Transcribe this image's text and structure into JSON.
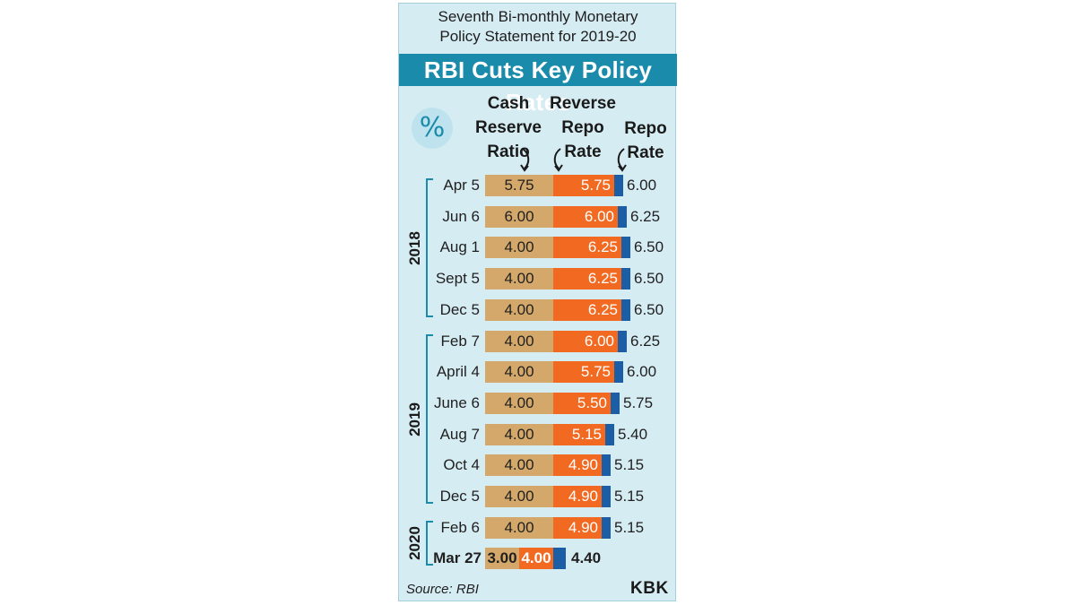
{
  "header": {
    "subtitle_line1": "Seventh Bi-monthly Monetary",
    "subtitle_line2": "Policy Statement for 2019-20",
    "title": "RBI Cuts Key Policy Rates",
    "unit_symbol": "%"
  },
  "columns": {
    "crr": [
      "Cash",
      "Reserve",
      "Ratio"
    ],
    "reverse_repo": [
      "Reverse",
      "Repo",
      "Rate"
    ],
    "repo": [
      "Repo",
      "Rate"
    ]
  },
  "years": [
    {
      "label": "2018",
      "start": 0,
      "end": 4
    },
    {
      "label": "2019",
      "start": 5,
      "end": 10
    },
    {
      "label": "2020",
      "start": 11,
      "end": 12
    }
  ],
  "footer": {
    "source": "Source: RBI",
    "credit": "KBK"
  },
  "colors": {
    "crr": "#d4a86a",
    "reverse_repo": "#f26a21",
    "repo": "#1b5ea5",
    "accent": "#1a8bab",
    "background": "#d6ecf3"
  },
  "chart_data": {
    "type": "bar",
    "title": "RBI Cuts Key Policy Rates",
    "categories": [
      "Apr 5",
      "Jun 6",
      "Aug 1",
      "Sept 5",
      "Dec 5",
      "Feb 7",
      "April 4",
      "June 6",
      "Aug 7",
      "Oct 4",
      "Dec 5",
      "Feb 6",
      "Mar 27"
    ],
    "series": [
      {
        "name": "Cash Reserve Ratio",
        "values": [
          5.75,
          6.0,
          4.0,
          4.0,
          4.0,
          4.0,
          4.0,
          4.0,
          4.0,
          4.0,
          4.0,
          4.0,
          3.0
        ]
      },
      {
        "name": "Reverse Repo Rate",
        "values": [
          5.75,
          6.0,
          6.25,
          6.25,
          6.25,
          6.0,
          5.75,
          5.5,
          5.15,
          4.9,
          4.9,
          4.9,
          4.0
        ]
      },
      {
        "name": "Repo Rate",
        "values": [
          6.0,
          6.25,
          6.5,
          6.5,
          6.5,
          6.25,
          6.0,
          5.75,
          5.4,
          5.15,
          5.15,
          5.15,
          4.4
        ]
      }
    ],
    "value_labels": {
      "crr": [
        "5.75",
        "6.00",
        "4.00",
        "4.00",
        "4.00",
        "4.00",
        "4.00",
        "4.00",
        "4.00",
        "4.00",
        "4.00",
        "4.00",
        "3.00"
      ],
      "reverse_repo": [
        "5.75",
        "6.00",
        "6.25",
        "6.25",
        "6.25",
        "6.00",
        "5.75",
        "5.50",
        "5.15",
        "4.90",
        "4.90",
        "4.90",
        "4.00"
      ],
      "repo": [
        "6.00",
        "6.25",
        "6.50",
        "6.50",
        "6.50",
        "6.25",
        "6.00",
        "5.75",
        "5.40",
        "5.15",
        "5.15",
        "5.15",
        "4.40"
      ]
    },
    "highlight_last_row": true
  }
}
